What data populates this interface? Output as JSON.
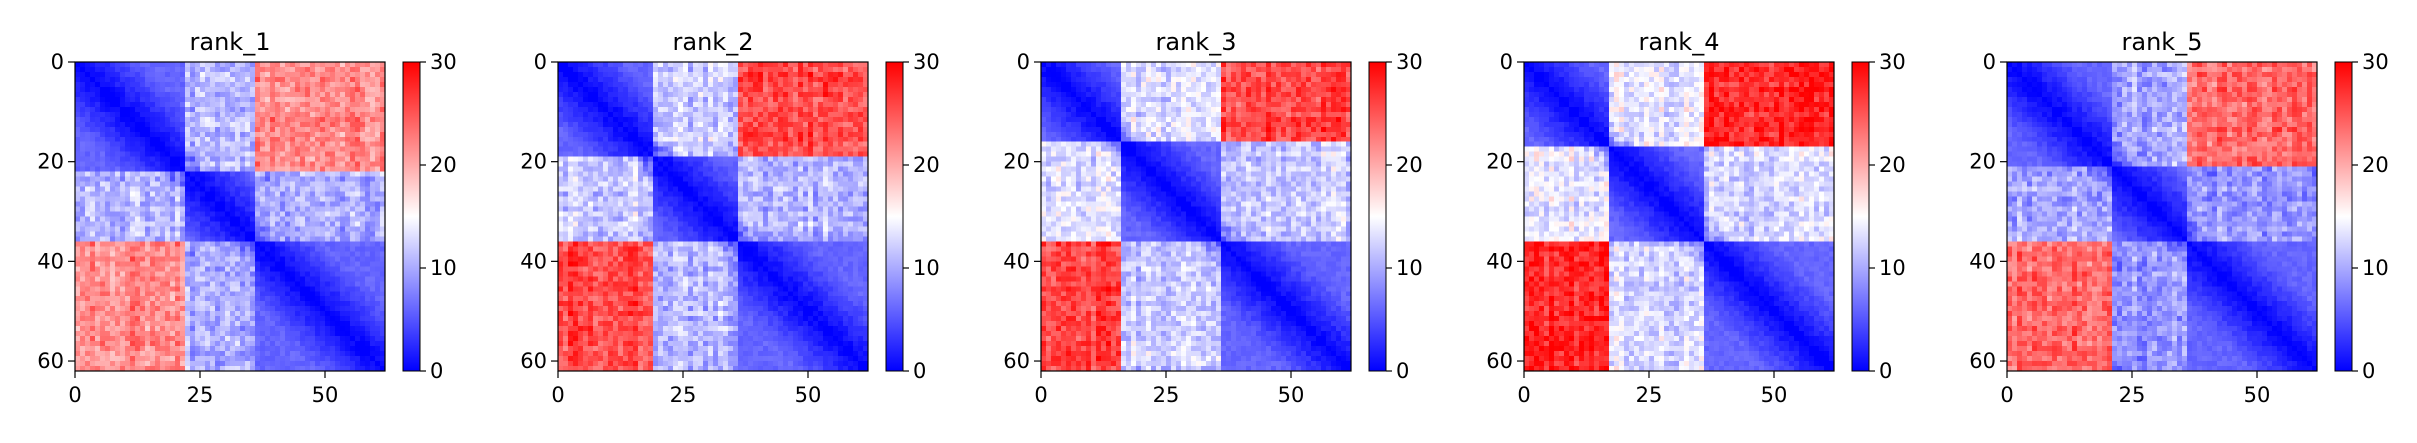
{
  "chart_data": [
    {
      "type": "heatmap",
      "title": "rank_1",
      "size": 62,
      "vmin": 0,
      "vmax": 30,
      "x_ticks": [
        0,
        25,
        50
      ],
      "y_ticks": [
        0,
        20,
        40,
        60
      ],
      "colorbar_ticks": [
        0,
        10,
        20,
        30
      ],
      "colormap": "bwr",
      "domains": [
        [
          0,
          22
        ],
        [
          22,
          36
        ],
        [
          36,
          62
        ]
      ],
      "off_levels": [
        [
          0,
          11,
          22
        ],
        [
          11,
          0,
          10
        ],
        [
          22,
          10,
          0
        ]
      ],
      "seed": 11
    },
    {
      "type": "heatmap",
      "title": "rank_2",
      "size": 62,
      "vmin": 0,
      "vmax": 30,
      "x_ticks": [
        0,
        25,
        50
      ],
      "y_ticks": [
        0,
        20,
        40,
        60
      ],
      "colorbar_ticks": [
        0,
        10,
        20,
        30
      ],
      "colormap": "bwr",
      "domains": [
        [
          0,
          19
        ],
        [
          19,
          36
        ],
        [
          36,
          62
        ]
      ],
      "off_levels": [
        [
          0,
          12,
          26
        ],
        [
          12,
          0,
          11
        ],
        [
          26,
          11,
          0
        ]
      ],
      "seed": 23
    },
    {
      "type": "heatmap",
      "title": "rank_3",
      "size": 62,
      "vmin": 0,
      "vmax": 30,
      "x_ticks": [
        0,
        25,
        50
      ],
      "y_ticks": [
        0,
        20,
        40,
        60
      ],
      "colorbar_ticks": [
        0,
        10,
        20,
        30
      ],
      "colormap": "bwr",
      "domains": [
        [
          0,
          16
        ],
        [
          16,
          36
        ],
        [
          36,
          62
        ]
      ],
      "off_levels": [
        [
          0,
          13,
          26
        ],
        [
          13,
          0,
          12
        ],
        [
          26,
          12,
          0
        ]
      ],
      "seed": 37
    },
    {
      "type": "heatmap",
      "title": "rank_4",
      "size": 62,
      "vmin": 0,
      "vmax": 30,
      "x_ticks": [
        0,
        25,
        50
      ],
      "y_ticks": [
        0,
        20,
        40,
        60
      ],
      "colorbar_ticks": [
        0,
        10,
        20,
        30
      ],
      "colormap": "bwr",
      "domains": [
        [
          0,
          17
        ],
        [
          17,
          36
        ],
        [
          36,
          62
        ]
      ],
      "off_levels": [
        [
          0,
          14,
          28
        ],
        [
          14,
          0,
          13
        ],
        [
          28,
          13,
          0
        ]
      ],
      "seed": 41
    },
    {
      "type": "heatmap",
      "title": "rank_5",
      "size": 62,
      "vmin": 0,
      "vmax": 30,
      "x_ticks": [
        0,
        25,
        50
      ],
      "y_ticks": [
        0,
        20,
        40,
        60
      ],
      "colorbar_ticks": [
        0,
        10,
        20,
        30
      ],
      "colormap": "bwr",
      "domains": [
        [
          0,
          21
        ],
        [
          21,
          36
        ],
        [
          36,
          62
        ]
      ],
      "off_levels": [
        [
          0,
          10,
          24
        ],
        [
          10,
          0,
          9
        ],
        [
          24,
          9,
          0
        ]
      ],
      "seed": 53
    }
  ]
}
